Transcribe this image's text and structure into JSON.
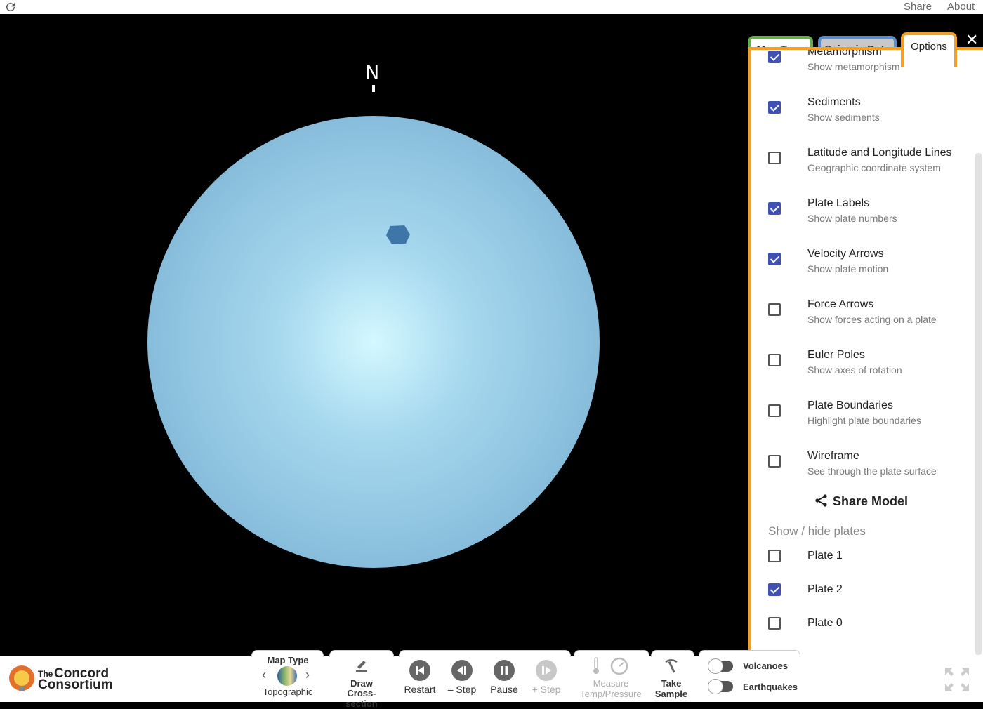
{
  "topbar": {
    "share": "Share",
    "about": "About"
  },
  "north_label": "N",
  "tabs": {
    "map_type": "Map Type",
    "seismic": "Seismic Data",
    "options": "Options",
    "close": "✕"
  },
  "options": [
    {
      "title": "Metamorphism",
      "subtitle": "Show metamorphism",
      "checked": true
    },
    {
      "title": "Sediments",
      "subtitle": "Show sediments",
      "checked": true
    },
    {
      "title": "Latitude and Longitude Lines",
      "subtitle": "Geographic coordinate system",
      "checked": false
    },
    {
      "title": "Plate Labels",
      "subtitle": "Show plate numbers",
      "checked": true
    },
    {
      "title": "Velocity Arrows",
      "subtitle": "Show plate motion",
      "checked": true
    },
    {
      "title": "Force Arrows",
      "subtitle": "Show forces acting on a plate",
      "checked": false
    },
    {
      "title": "Euler Poles",
      "subtitle": "Show axes of rotation",
      "checked": false
    },
    {
      "title": "Plate Boundaries",
      "subtitle": "Highlight plate boundaries",
      "checked": false
    },
    {
      "title": "Wireframe",
      "subtitle": "See through the plate surface",
      "checked": false
    }
  ],
  "share_model": "Share Model",
  "plates_heading": "Show / hide plates",
  "plates": [
    {
      "label": "Plate 1",
      "checked": false
    },
    {
      "label": "Plate 2",
      "checked": true
    },
    {
      "label": "Plate 0",
      "checked": false
    }
  ],
  "bottom": {
    "logo_the": "The",
    "logo_line1": "Concord",
    "logo_line2": "Consortium",
    "map_type_title": "Map Type",
    "map_type_value": "Topographic",
    "draw_line1": "Draw",
    "draw_line2": "Cross-section",
    "restart": "Restart",
    "step_back": "– Step",
    "pause": "Pause",
    "step_fwd": "+ Step",
    "measure_line1": "Measure",
    "measure_line2": "Temp/Pressure",
    "sample_line1": "Take",
    "sample_line2": "Sample",
    "volcanoes": "Volcanoes",
    "earthquakes": "Earthquakes"
  },
  "colors": {
    "accent_orange": "#f29f27",
    "checkbox_blue": "#3f51b5",
    "globe_blue": "#8cc1de",
    "plate_blue": "#3e76a8"
  }
}
